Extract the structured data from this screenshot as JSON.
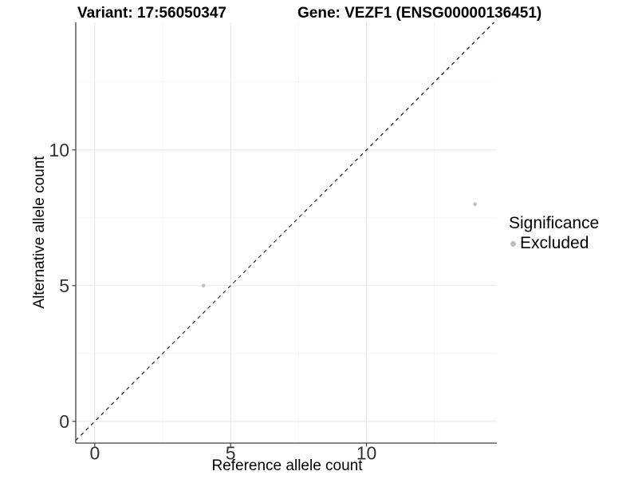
{
  "chart_data": {
    "type": "scatter",
    "titles": [
      "Variant: 17:56050347",
      "Gene: VEZF1 (ENSG00000136451)"
    ],
    "xlabel": "Reference allele count",
    "ylabel": "Alternative allele count",
    "xlim": [
      -0.7,
      14.8
    ],
    "ylim": [
      -0.8,
      14.7
    ],
    "x_ticks": [
      0,
      5,
      10
    ],
    "y_ticks": [
      0,
      5,
      10
    ],
    "x_minor_gridlines": [
      2.5,
      7.5,
      12.5
    ],
    "y_minor_gridlines": [
      2.5,
      7.5,
      12.5
    ],
    "grid": "major and minor gridlines on, light gray, no top/right panel border",
    "legend_position": "right, vertically centered",
    "series": [
      {
        "name": "Excluded",
        "marker_color": "#bebebe",
        "points": [
          [
            4,
            5
          ],
          [
            14,
            8
          ]
        ]
      }
    ],
    "reference_line": {
      "kind": "identity y = x",
      "style": "dashed",
      "color": "#000000"
    }
  },
  "legend": {
    "title": "Significance",
    "items": [
      {
        "label": "Excluded",
        "marker_color": "#bebebe"
      }
    ]
  },
  "colors": {
    "background": "#ffffff",
    "grid_major": "#e6e6e6",
    "grid_minor": "#f2f2f2",
    "axis_line": "#404040",
    "tick_mark": "#404040",
    "tick_label": "#333333",
    "point": "#bebebe",
    "dashed_line": "#000000",
    "text": "#000000"
  }
}
